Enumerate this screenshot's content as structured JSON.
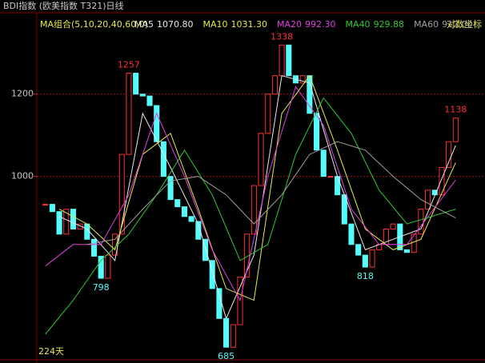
{
  "chart_data": {
    "type": "candle-close",
    "title": "BDI指数 (欧美指数 T321)日线",
    "legend_title": "MA组合(5,10,20,40,60,0)",
    "scale_label": "对数坐标",
    "period_label": "224天",
    "log_scale": true,
    "grid": true,
    "ylim": [
      678,
      1437
    ],
    "yticks": [
      1000,
      1200
    ],
    "xlim": [
      0,
      61
    ],
    "up_color": "#ff3232",
    "down_color": "#54fcfc",
    "x": [
      1,
      2,
      3,
      4,
      5,
      6,
      7,
      8,
      9,
      10,
      11,
      12,
      13,
      14,
      15,
      16,
      17,
      18,
      19,
      20,
      21,
      22,
      23,
      24,
      25,
      26,
      27,
      28,
      29,
      30,
      31,
      32,
      33,
      34,
      35,
      36,
      37,
      38,
      39,
      40,
      41,
      42,
      43,
      44,
      45,
      46,
      47,
      48,
      49,
      50,
      51,
      52,
      53,
      54,
      55,
      56,
      57,
      58,
      59,
      60
    ],
    "close": [
      940,
      925,
      880,
      930,
      890,
      900,
      870,
      838,
      798,
      840,
      880,
      1050,
      1257,
      1200,
      1195,
      1170,
      1080,
      1000,
      950,
      935,
      915,
      905,
      870,
      830,
      780,
      730,
      685,
      720,
      800,
      880,
      980,
      1100,
      1200,
      1250,
      1338,
      1250,
      1230,
      1250,
      1150,
      1060,
      1000,
      1000,
      960,
      900,
      860,
      840,
      818,
      850,
      860,
      890,
      900,
      850,
      845,
      880,
      930,
      970,
      960,
      1020,
      1080,
      1138
    ],
    "series": [
      {
        "name": "MA5",
        "last_label": "1070.80",
        "color": "#e8e8e8",
        "x": [
          3,
          7,
          11,
          15,
          19,
          23,
          27,
          31,
          35,
          39,
          43,
          47,
          51,
          55,
          60
        ],
        "values": [
          915,
          890,
          830,
          1150,
          1020,
          900,
          730,
          840,
          1250,
          1230,
          1000,
          850,
          870,
          890,
          1071
        ]
      },
      {
        "name": "MA10",
        "last_label": "1031.30",
        "color": "#e8e84c",
        "x": [
          3,
          7,
          11,
          15,
          19,
          23,
          27,
          31,
          35,
          39,
          43,
          47,
          51,
          55,
          60
        ],
        "values": [
          930,
          900,
          850,
          1050,
          1100,
          930,
          780,
          760,
          1150,
          1250,
          1060,
          890,
          850,
          870,
          1031
        ]
      },
      {
        "name": "MA20",
        "last_label": "992.30",
        "color": "#e040e0",
        "x": [
          1,
          5,
          9,
          13,
          17,
          21,
          25,
          29,
          33,
          37,
          41,
          45,
          49,
          53,
          60
        ],
        "values": [
          820,
          860,
          860,
          960,
          1150,
          1000,
          850,
          760,
          1000,
          1220,
          1120,
          930,
          860,
          860,
          992
        ]
      },
      {
        "name": "MA40",
        "last_label": "929.88",
        "color": "#30c830",
        "x": [
          1,
          5,
          9,
          13,
          17,
          21,
          25,
          29,
          33,
          37,
          41,
          45,
          49,
          53,
          60
        ],
        "values": [
          705,
          760,
          830,
          880,
          960,
          1060,
          960,
          830,
          860,
          1050,
          1190,
          1100,
          970,
          900,
          930
        ]
      },
      {
        "name": "MA60",
        "last_label": "912.00",
        "color": "#a0a0a0",
        "x": [
          7,
          11,
          15,
          19,
          23,
          27,
          31,
          35,
          39,
          43,
          47,
          51,
          55,
          60
        ],
        "values": [
          860,
          870,
          930,
          990,
          1000,
          960,
          900,
          960,
          1050,
          1080,
          1060,
          1000,
          950,
          912
        ]
      }
    ],
    "annotations": [
      {
        "x": 13,
        "value": 1257,
        "position": "above"
      },
      {
        "x": 9,
        "value": 798,
        "position": "below"
      },
      {
        "x": 35,
        "value": 1338,
        "position": "above"
      },
      {
        "x": 27,
        "value": 685,
        "position": "below"
      },
      {
        "x": 47,
        "value": 818,
        "position": "below"
      },
      {
        "x": 60,
        "value": 1138,
        "position": "above"
      }
    ]
  }
}
